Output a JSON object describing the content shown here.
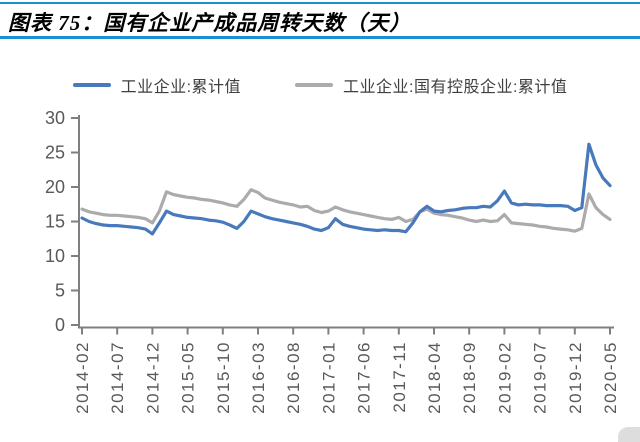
{
  "header": {
    "title": "图表 75：国有企业产成品周转天数（天）"
  },
  "colors": {
    "accent_rule": "#1d8ed2",
    "axis": "#7f7f7f",
    "tick_label": "#595959",
    "series_blue": "#4879bd",
    "series_gray": "#ababab"
  },
  "chart_data": {
    "type": "line",
    "title": "国有企业产成品周转天数（天）",
    "xlabel": "",
    "ylabel": "",
    "ylim": [
      0,
      30
    ],
    "yticks": [
      0,
      5,
      10,
      15,
      20,
      25,
      30
    ],
    "grid": false,
    "legend_position": "top",
    "x_range": [
      "2014-02",
      "2020-05"
    ],
    "x_frequency": "monthly",
    "months_between_ticks": 5,
    "x_tick_labels": [
      "2014-02",
      "2014-07",
      "2014-12",
      "2015-05",
      "2015-10",
      "2016-03",
      "2016-08",
      "2017-01",
      "2017-06",
      "2017-11",
      "2018-04",
      "2018-09",
      "2019-02",
      "2019-07",
      "2019-12",
      "2020-05"
    ],
    "series": [
      {
        "name": "工业企业:累计值",
        "color": "#4879bd",
        "values": [
          15.5,
          15.0,
          14.7,
          14.5,
          14.4,
          14.4,
          14.3,
          14.2,
          14.1,
          13.9,
          13.2,
          14.8,
          16.5,
          16.0,
          15.8,
          15.6,
          15.5,
          15.4,
          15.2,
          15.1,
          14.9,
          14.5,
          14.0,
          15.0,
          16.5,
          16.1,
          15.7,
          15.4,
          15.2,
          15.0,
          14.8,
          14.6,
          14.3,
          13.9,
          13.7,
          14.1,
          15.4,
          14.6,
          14.3,
          14.1,
          13.9,
          13.8,
          13.7,
          13.8,
          13.7,
          13.7,
          13.5,
          14.8,
          16.4,
          17.2,
          16.5,
          16.4,
          16.6,
          16.7,
          16.9,
          17.0,
          17.0,
          17.2,
          17.1,
          18.0,
          19.4,
          17.7,
          17.4,
          17.5,
          17.4,
          17.4,
          17.3,
          17.3,
          17.3,
          17.2,
          16.6,
          17.0,
          26.2,
          23.2,
          21.3,
          20.2
        ]
      },
      {
        "name": "工业企业:国有控股企业:累计值",
        "color": "#ababab",
        "values": [
          16.8,
          16.4,
          16.2,
          16.0,
          15.9,
          15.9,
          15.8,
          15.7,
          15.6,
          15.4,
          14.8,
          16.5,
          19.3,
          18.9,
          18.7,
          18.5,
          18.4,
          18.2,
          18.1,
          17.9,
          17.7,
          17.4,
          17.2,
          18.2,
          19.6,
          19.2,
          18.4,
          18.1,
          17.8,
          17.6,
          17.4,
          17.1,
          17.2,
          16.6,
          16.3,
          16.5,
          17.1,
          16.7,
          16.4,
          16.2,
          16.0,
          15.8,
          15.6,
          15.4,
          15.3,
          15.6,
          15.0,
          15.3,
          16.4,
          16.8,
          16.2,
          16.0,
          15.9,
          15.7,
          15.5,
          15.2,
          15.0,
          15.2,
          15.0,
          15.1,
          16.0,
          14.8,
          14.7,
          14.6,
          14.5,
          14.3,
          14.2,
          14.0,
          13.9,
          13.8,
          13.6,
          14.0,
          19.0,
          17.0,
          16.0,
          15.3
        ]
      }
    ]
  }
}
